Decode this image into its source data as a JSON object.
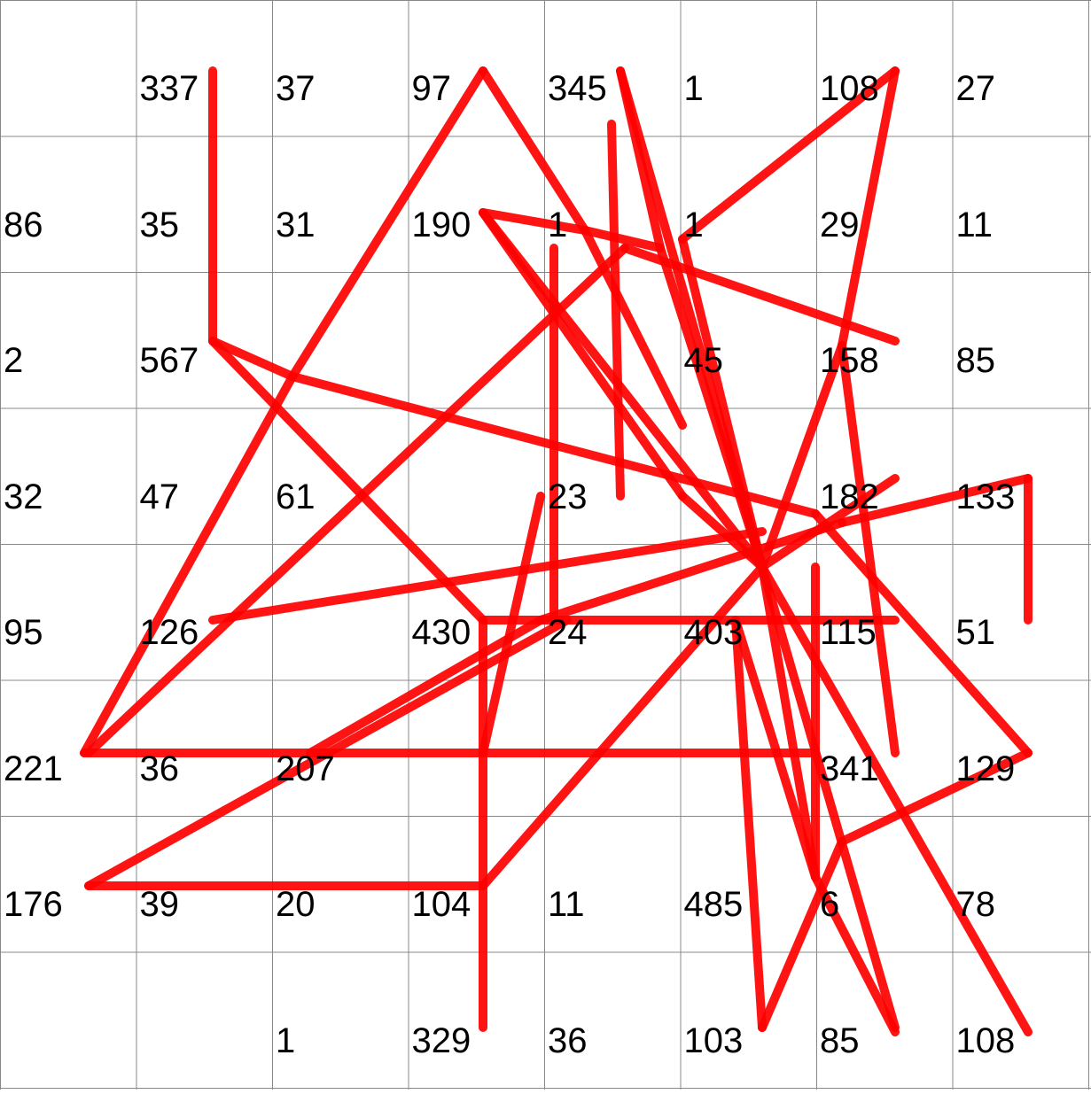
{
  "grid": {
    "rows": 8,
    "cols": 8,
    "line_color": "#888888",
    "background": "#ffffff",
    "cells": [
      [
        "",
        "337",
        "37",
        "97",
        "345",
        "1",
        "108",
        "27"
      ],
      [
        "86",
        "35",
        "31",
        "190",
        "1",
        "1",
        "29",
        "11"
      ],
      [
        "2",
        "567",
        "",
        "",
        "",
        "45",
        "158",
        "85"
      ],
      [
        "32",
        "47",
        "61",
        "",
        "23",
        "",
        "182",
        "133"
      ],
      [
        "95",
        "126",
        "",
        "430",
        "24",
        "403",
        "115",
        "51"
      ],
      [
        "221",
        "36",
        "207",
        "",
        "",
        "",
        "341",
        "129"
      ],
      [
        "176",
        "39",
        "20",
        "104",
        "11",
        "485",
        "6",
        "78"
      ],
      [
        "",
        "",
        "1",
        "329",
        "36",
        "103",
        "85",
        "108"
      ]
    ]
  },
  "path": {
    "color": "#ff0000"
  }
}
